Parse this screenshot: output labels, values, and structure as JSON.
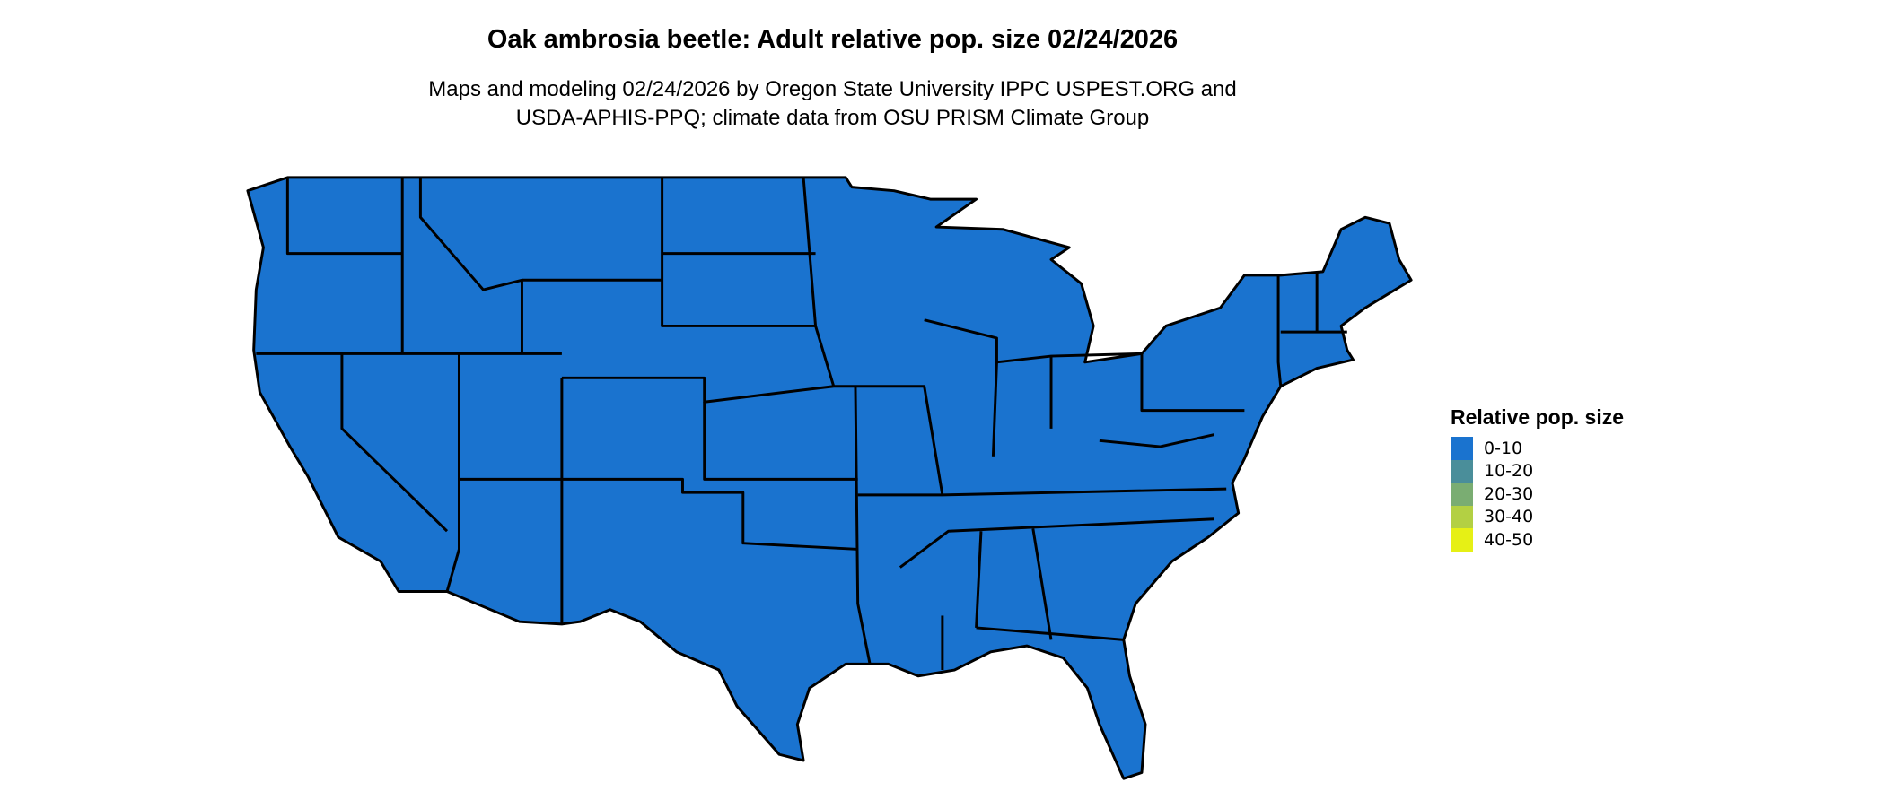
{
  "title": "Oak ambrosia beetle: Adult relative pop. size 02/24/2026",
  "subtitle_line1": "Maps and modeling 02/24/2026 by Oregon State University IPPC USPEST.ORG and",
  "subtitle_line2": "USDA-APHIS-PPQ; climate data from OSU PRISM Climate Group",
  "map": {
    "region": "Contiguous United States",
    "fill_category": "0-10",
    "fill_color": "#1a73cf",
    "border_color": "#000000"
  },
  "legend": {
    "title": "Relative pop. size",
    "items": [
      {
        "label": "0-10",
        "color": "#1a73cf"
      },
      {
        "label": "10-20",
        "color": "#4a8e9a"
      },
      {
        "label": "20-30",
        "color": "#7aad72"
      },
      {
        "label": "30-40",
        "color": "#b3d043"
      },
      {
        "label": "40-50",
        "color": "#e6f015"
      }
    ]
  }
}
